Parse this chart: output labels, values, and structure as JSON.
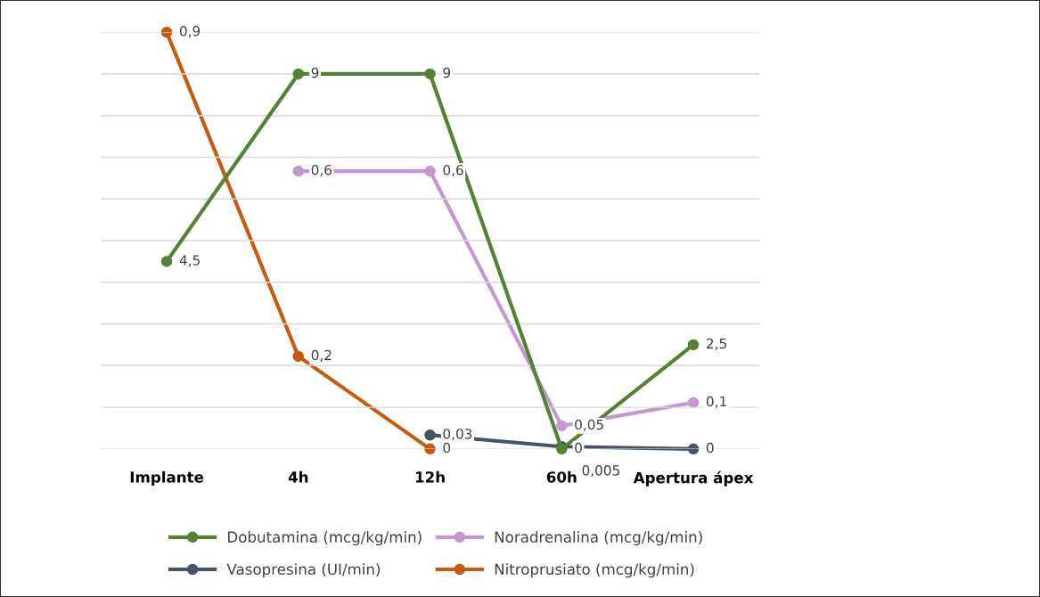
{
  "chart_data": {
    "type": "line",
    "categories": [
      "Implante",
      "4h",
      "12h",
      "60h",
      "Apertura ápex"
    ],
    "series": [
      {
        "name": "Dobutamina (mcg/kg/min)",
        "color": "#548235",
        "values": [
          4.5,
          9,
          9,
          0,
          2.5
        ],
        "value_labels": [
          "4,5",
          "9",
          "9",
          "0",
          "2,5"
        ]
      },
      {
        "name": "Noradrenalina (mcg/kg/min)",
        "color": "#c497d0",
        "axis": "y2",
        "values": [
          null,
          0.6,
          0.6,
          0.05,
          0.1
        ],
        "value_labels": [
          null,
          "0,6",
          "0,6",
          "0,05",
          "0,1"
        ]
      },
      {
        "name": "Vasopresina (UI/min)",
        "color": "#44546a",
        "axis": "y2",
        "values": [
          null,
          null,
          0.03,
          0.005,
          0
        ],
        "value_labels": [
          null,
          null,
          "0,03",
          "0,005",
          "0"
        ]
      },
      {
        "name": "Nitroprusiato (mcg/kg/min)",
        "color": "#c55a11",
        "axis": "y2",
        "values": [
          0.9,
          0.2,
          0,
          null,
          null
        ],
        "value_labels": [
          "0,9",
          "0,2",
          "0",
          null,
          null
        ]
      }
    ],
    "ylim": [
      0,
      10
    ],
    "yticks": [
      {
        "value": 0,
        "label": null
      },
      {
        "value": 1,
        "label": null
      },
      {
        "value": 2,
        "label": null
      },
      {
        "value": 3,
        "label": null
      },
      {
        "value": 4,
        "label": null
      },
      {
        "value": 5,
        "label": null
      },
      {
        "value": 6,
        "label": null
      },
      {
        "value": 7,
        "label": null
      },
      {
        "value": 8,
        "label": null
      },
      {
        "value": 9,
        "label": null
      },
      {
        "value": 10,
        "label": null
      }
    ],
    "y2lim": [
      0,
      0.9
    ],
    "tick_labels": "x",
    "grid": "y",
    "legend": "bottom",
    "marker": "circle",
    "line_style": "solid"
  }
}
